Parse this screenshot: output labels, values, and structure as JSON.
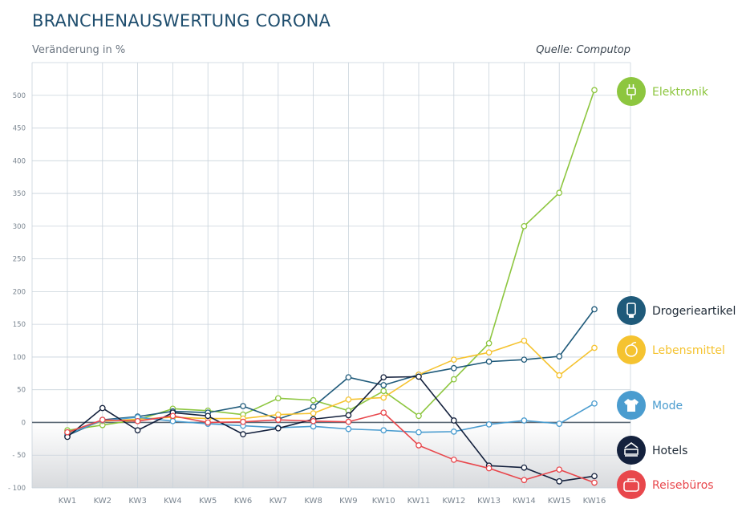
{
  "header": {
    "title": "BRANCHENAUSWERTUNG CORONA",
    "y_label": "Veränderung in %",
    "source": "Quelle: Computop"
  },
  "chart_data": {
    "type": "line",
    "title": "BRANCHENAUSWERTUNG CORONA",
    "ylabel": "Veränderung in %",
    "xlabel": "",
    "ylim": [
      -100,
      550
    ],
    "yticks": [
      -100,
      -50,
      0,
      50,
      100,
      150,
      200,
      250,
      300,
      350,
      400,
      450,
      500
    ],
    "ytick_labels": [
      "- 100",
      "- 50",
      "0",
      "50",
      "100",
      "150",
      "200",
      "250",
      "300",
      "350",
      "400",
      "450",
      "500"
    ],
    "grid": true,
    "legend_position": "right",
    "categories": [
      "KW1",
      "KW2",
      "KW3",
      "KW4",
      "KW5",
      "KW6",
      "KW7",
      "KW8",
      "KW9",
      "KW10",
      "KW11",
      "KW12",
      "KW13",
      "KW14",
      "KW15",
      "KW16"
    ],
    "series": [
      {
        "name": "Elektronik",
        "color": "#8dc63f",
        "icon": "plug-icon",
        "values": [
          -12,
          -4,
          4,
          21,
          18,
          12,
          37,
          34,
          18,
          48,
          10,
          66,
          121,
          300,
          351,
          508
        ]
      },
      {
        "name": "Drogerieartikel",
        "color": "#1f5a7a",
        "icon": "tube-icon",
        "values": [
          -20,
          4,
          9,
          17,
          15,
          25,
          5,
          24,
          69,
          57,
          73,
          83,
          93,
          96,
          101,
          173
        ]
      },
      {
        "name": "Lebensmittel",
        "color": "#f5c330",
        "icon": "orange-icon",
        "values": [
          -16,
          2,
          5,
          8,
          6,
          6,
          12,
          14,
          35,
          38,
          73,
          96,
          107,
          125,
          72,
          114
        ]
      },
      {
        "name": "Mode",
        "color": "#4a9ccf",
        "icon": "shirt-icon",
        "values": [
          -18,
          3,
          8,
          2,
          -2,
          -5,
          -8,
          -6,
          -10,
          -12,
          -15,
          -14,
          -3,
          3,
          -2,
          29
        ]
      },
      {
        "name": "Hotels",
        "color": "#14213d",
        "icon": "bed-icon",
        "values": [
          -22,
          22,
          -12,
          15,
          10,
          -18,
          -9,
          5,
          11,
          69,
          70,
          3,
          -66,
          -69,
          -90,
          -82
        ]
      },
      {
        "name": "Reisebüros",
        "color": "#e8474c",
        "icon": "suitcase-icon",
        "values": [
          -15,
          4,
          2,
          10,
          0,
          1,
          4,
          2,
          1,
          15,
          -35,
          -57,
          -70,
          -88,
          -72,
          -92
        ]
      }
    ]
  }
}
